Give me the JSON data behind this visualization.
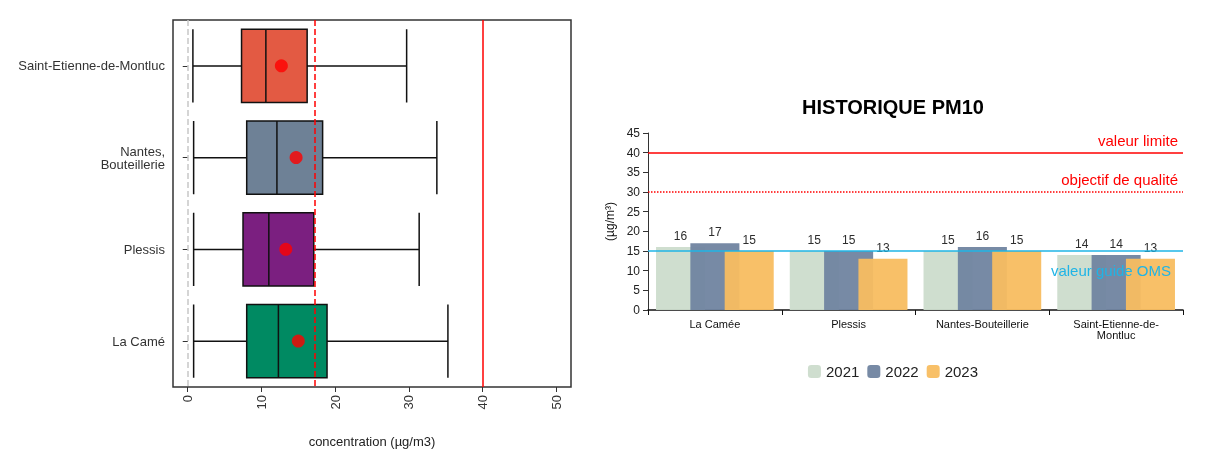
{
  "chart_data": [
    {
      "type": "box",
      "orientation": "horizontal",
      "xlabel": "concentration (µg/m3)",
      "categories": [
        "Saint-Etienne-de-Montluc",
        "Nantes,\nBouteillerie",
        "Plessis",
        "La Camé"
      ],
      "boxes": [
        {
          "low": 0.7,
          "q1": 7.3,
          "median": 10.6,
          "q3": 16.2,
          "high": 29.7,
          "mean": 12.7
        },
        {
          "low": 0.8,
          "q1": 8.0,
          "median": 12.1,
          "q3": 18.3,
          "high": 33.8,
          "mean": 14.7
        },
        {
          "low": 0.8,
          "q1": 7.5,
          "median": 11.0,
          "q3": 17.1,
          "high": 31.4,
          "mean": 13.3
        },
        {
          "low": 0.8,
          "q1": 8.0,
          "median": 12.3,
          "q3": 18.9,
          "high": 35.3,
          "mean": 15.0
        }
      ],
      "colors": [
        "#e35a43",
        "#6e8196",
        "#7b1f80",
        "#008a62"
      ],
      "xlim": [
        -2,
        52
      ],
      "xticks": [
        0,
        10,
        20,
        30,
        40,
        50
      ],
      "ref_lines": [
        {
          "axis": "x",
          "value": 0,
          "label": null,
          "color": "#c8c8c8",
          "line_style": "dashed"
        },
        {
          "axis": "x",
          "value": 17.3,
          "label": null,
          "color": "#ff0000",
          "line_style": "dashed"
        },
        {
          "axis": "x",
          "value": 40,
          "label": null,
          "color": "#ff0000",
          "line_style": "solid"
        }
      ]
    },
    {
      "type": "bar",
      "title": "HISTORIQUE PM10",
      "ylabel": "(µg/m³)",
      "categories": [
        "La Camée",
        "Plessis",
        "Nantes-Bouteillerie",
        "Saint-Etienne-de-\nMontluc"
      ],
      "series": [
        {
          "name": "2021",
          "color": "#ccdccc",
          "values": [
            16,
            15,
            15,
            14
          ]
        },
        {
          "name": "2022",
          "color": "#7084a0",
          "values": [
            17,
            15,
            16,
            14
          ]
        },
        {
          "name": "2023",
          "color": "#f8bd60",
          "values": [
            15,
            13,
            15,
            13
          ]
        }
      ],
      "ylim": [
        0,
        45
      ],
      "yticks": [
        0,
        5,
        10,
        15,
        20,
        25,
        30,
        35,
        40,
        45
      ],
      "data_labels": true,
      "legend": "bottom",
      "ref_lines": [
        {
          "axis": "y",
          "value": 40,
          "label": "valeur limite",
          "color": "#ff0000",
          "line_style": "solid"
        },
        {
          "axis": "y",
          "value": 30,
          "label": "objectif de qualité",
          "color": "#ff0000",
          "line_style": "dotted"
        },
        {
          "axis": "y",
          "value": 15,
          "label": "valeur guide OMS",
          "color": "#1fb4e6",
          "line_style": "solid"
        }
      ]
    }
  ]
}
